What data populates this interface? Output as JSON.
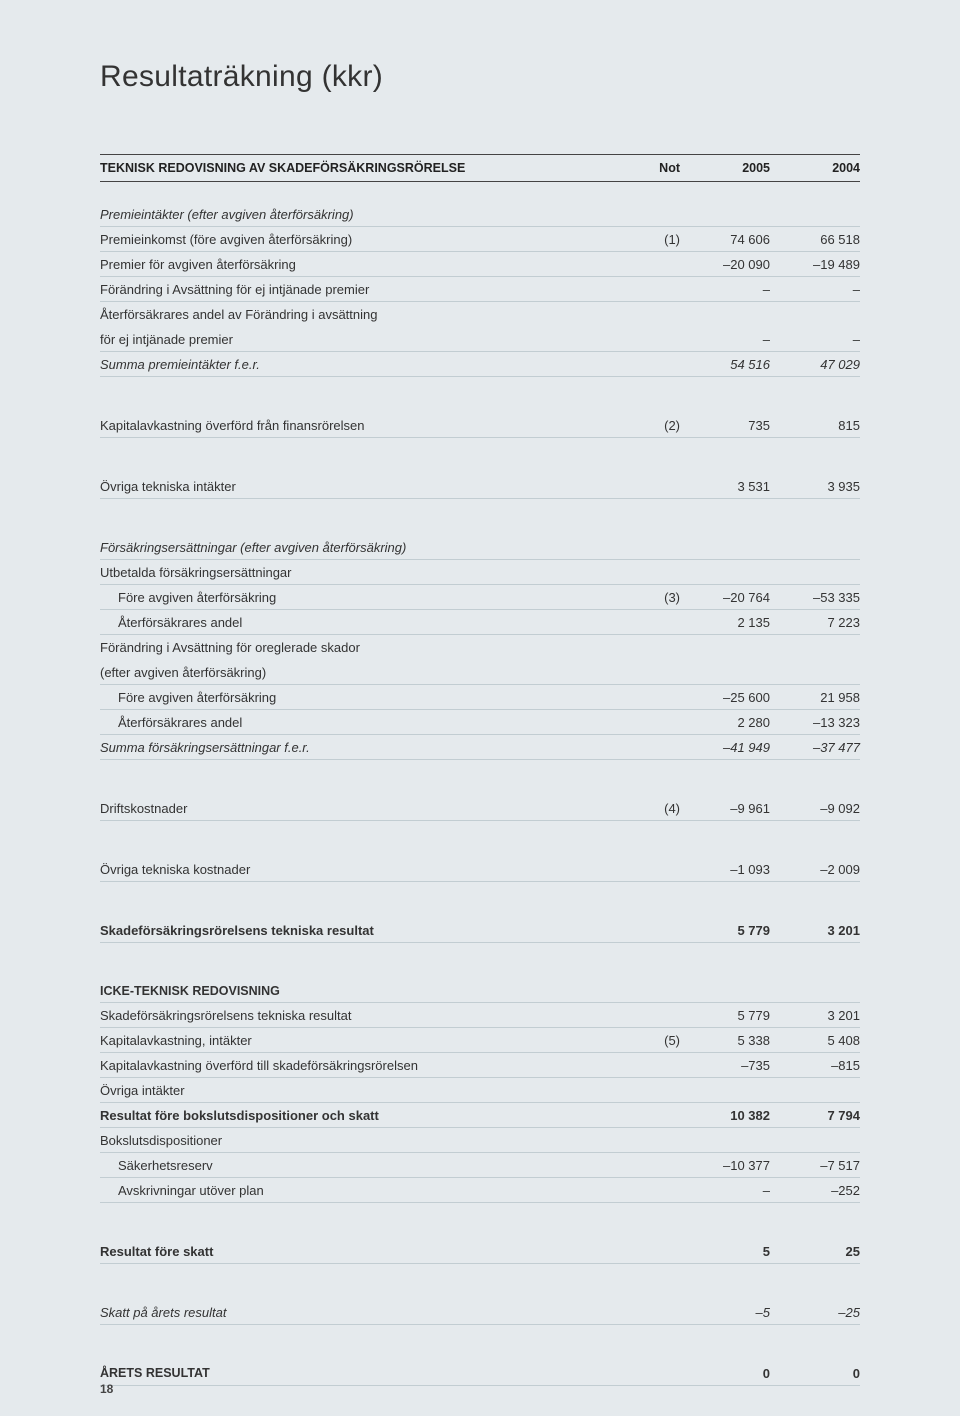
{
  "page": {
    "title": "Resultaträkning (kkr)",
    "page_number": "18",
    "columns": {
      "section_title": "TEKNISK REDOVISNING AV SKADEFÖRSÄKRINGSRÖRELSE",
      "note": "Not",
      "y2005": "2005",
      "y2004": "2004"
    }
  },
  "rows": [
    {
      "type": "head-section",
      "label": "Premieintäkter (efter avgiven återförsäkring)"
    },
    {
      "type": "body",
      "label": "Premieinkomst (före avgiven återförsäkring)",
      "note": "(1)",
      "y2005": "74 606",
      "y2004": "66 518"
    },
    {
      "type": "body",
      "label": "Premier för avgiven återförsäkring",
      "y2005": "–20 090",
      "y2004": "–19 489"
    },
    {
      "type": "body",
      "label": "Förändring i Avsättning för ej intjänade premier",
      "y2005": "–",
      "y2004": "–"
    },
    {
      "type": "body",
      "label": "Återförsäkrares andel av Förändring i avsättning",
      "no_border": true
    },
    {
      "type": "body",
      "label": "för ej intjänade premier",
      "y2005": "–",
      "y2004": "–"
    },
    {
      "type": "body italic",
      "label": "Summa premieintäkter f.e.r.",
      "y2005": "54 516",
      "y2004": "47 029"
    },
    {
      "type": "spacer-big"
    },
    {
      "type": "body",
      "label": "Kapitalavkastning överförd från finansrörelsen",
      "note": "(2)",
      "y2005": "735",
      "y2004": "815"
    },
    {
      "type": "spacer-big"
    },
    {
      "type": "body",
      "label": "Övriga tekniska intäkter",
      "y2005": "3 531",
      "y2004": "3 935"
    },
    {
      "type": "spacer-big"
    },
    {
      "type": "head-section",
      "label": "Försäkringsersättningar (efter avgiven återförsäkring)"
    },
    {
      "type": "body",
      "label": "Utbetalda försäkringsersättningar"
    },
    {
      "type": "body",
      "indent": true,
      "label": "Före avgiven återförsäkring",
      "note": "(3)",
      "y2005": "–20 764",
      "y2004": "–53 335"
    },
    {
      "type": "body",
      "indent": true,
      "label": "Återförsäkrares andel",
      "y2005": "2 135",
      "y2004": "7 223"
    },
    {
      "type": "body",
      "label": "Förändring i Avsättning för oreglerade skador",
      "no_border": true
    },
    {
      "type": "body",
      "label": "(efter avgiven återförsäkring)"
    },
    {
      "type": "body",
      "indent": true,
      "label": "Före avgiven återförsäkring",
      "y2005": "–25 600",
      "y2004": "21 958"
    },
    {
      "type": "body",
      "indent": true,
      "label": "Återförsäkrares andel",
      "y2005": "2 280",
      "y2004": "–13 323"
    },
    {
      "type": "body italic",
      "label": "Summa försäkringsersättningar f.e.r.",
      "y2005": "–41 949",
      "y2004": "–37 477"
    },
    {
      "type": "spacer-big"
    },
    {
      "type": "body",
      "label": "Driftskostnader",
      "note": "(4)",
      "y2005": "–9 961",
      "y2004": "–9 092"
    },
    {
      "type": "spacer-big"
    },
    {
      "type": "body",
      "label": "Övriga tekniska kostnader",
      "y2005": "–1 093",
      "y2004": "–2 009"
    },
    {
      "type": "spacer-big"
    },
    {
      "type": "body bold",
      "label": "Skadeförsäkringsrörelsens tekniska resultat",
      "y2005": "5 779",
      "y2004": "3 201"
    },
    {
      "type": "spacer-big"
    },
    {
      "type": "body caps",
      "label": "ICKE-TEKNISK REDOVISNING"
    },
    {
      "type": "body",
      "label": "Skadeförsäkringsrörelsens tekniska resultat",
      "y2005": "5 779",
      "y2004": "3 201"
    },
    {
      "type": "body",
      "label": "Kapitalavkastning, intäkter",
      "note": "(5)",
      "y2005": "5 338",
      "y2004": "5 408"
    },
    {
      "type": "body",
      "label": "Kapitalavkastning överförd till skadeförsäkringsrörelsen",
      "y2005": "–735",
      "y2004": "–815"
    },
    {
      "type": "body",
      "label": "Övriga intäkter"
    },
    {
      "type": "body bold",
      "label": "Resultat före bokslutsdispositioner och skatt",
      "y2005": "10 382",
      "y2004": "7 794"
    },
    {
      "type": "body",
      "label": "Bokslutsdispositioner"
    },
    {
      "type": "body",
      "indent": true,
      "label": "Säkerhetsreserv",
      "y2005": "–10 377",
      "y2004": "–7 517"
    },
    {
      "type": "body",
      "indent": true,
      "label": "Avskrivningar utöver plan",
      "y2005": "–",
      "y2004": "–252"
    },
    {
      "type": "spacer-big"
    },
    {
      "type": "body bold",
      "label": "Resultat före skatt",
      "y2005": "5",
      "y2004": "25"
    },
    {
      "type": "spacer-big"
    },
    {
      "type": "body italic",
      "label": "Skatt på årets resultat",
      "y2005": "–5",
      "y2004": "–25"
    },
    {
      "type": "spacer-big"
    },
    {
      "type": "body bold caps",
      "label": "ÅRETS RESULTAT",
      "y2005": "0",
      "y2004": "0"
    }
  ],
  "colors": {
    "background": "#e5eaed",
    "text": "#333333",
    "rule": "#c2cdd2",
    "header_rule": "#444444"
  },
  "typography": {
    "title_size_pt": 22,
    "body_size_pt": 10,
    "header_size_pt": 9.5
  }
}
